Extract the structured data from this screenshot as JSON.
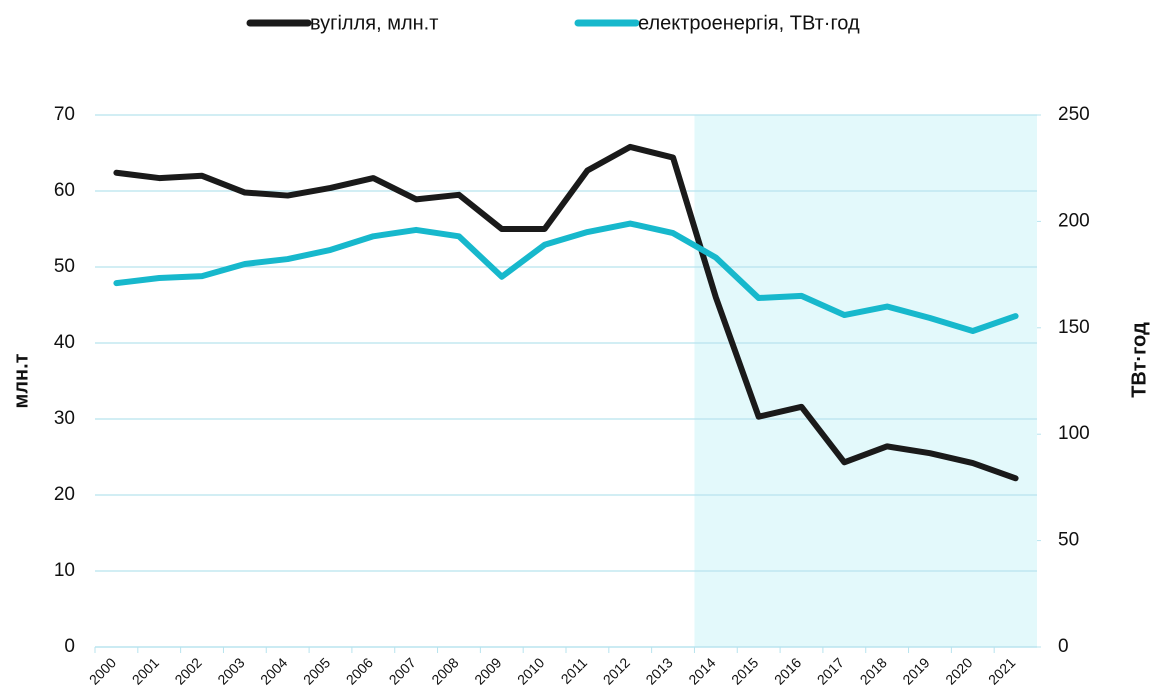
{
  "chart_data": {
    "type": "line",
    "categories": [
      "2000",
      "2001",
      "2002",
      "2003",
      "2004",
      "2005",
      "2006",
      "2007",
      "2008",
      "2009",
      "2010",
      "2011",
      "2012",
      "2013",
      "2014",
      "2015",
      "2016",
      "2017",
      "2018",
      "2019",
      "2020",
      "2021"
    ],
    "series": [
      {
        "name": "вугілля, млн.т",
        "color": "#1a1a1a",
        "axis": "y",
        "values": [
          62.4,
          61.7,
          62.0,
          59.8,
          59.4,
          60.4,
          61.7,
          58.9,
          59.5,
          55.0,
          55.0,
          62.7,
          65.8,
          64.4,
          46.0,
          30.3,
          31.6,
          24.3,
          26.4,
          25.5,
          24.2,
          22.2
        ]
      },
      {
        "name": "електроенергія, ТВт·год",
        "color": "#17b8cc",
        "axis": "y2",
        "values": [
          171,
          173.4,
          174.3,
          180,
          182.3,
          186.6,
          193,
          196,
          193,
          174,
          189,
          195,
          199,
          194.5,
          183,
          164,
          165,
          156,
          160,
          154.6,
          148.5,
          155.5
        ]
      }
    ],
    "ylabel": "млн.т",
    "y2label": "ТВт·год",
    "ylim": [
      0,
      70
    ],
    "yticks": [
      0,
      10,
      20,
      30,
      40,
      50,
      60,
      70
    ],
    "y2lim": [
      0,
      250
    ],
    "y2ticks": [
      0,
      50,
      100,
      150,
      200,
      250
    ],
    "grid": true,
    "legend": "top"
  }
}
